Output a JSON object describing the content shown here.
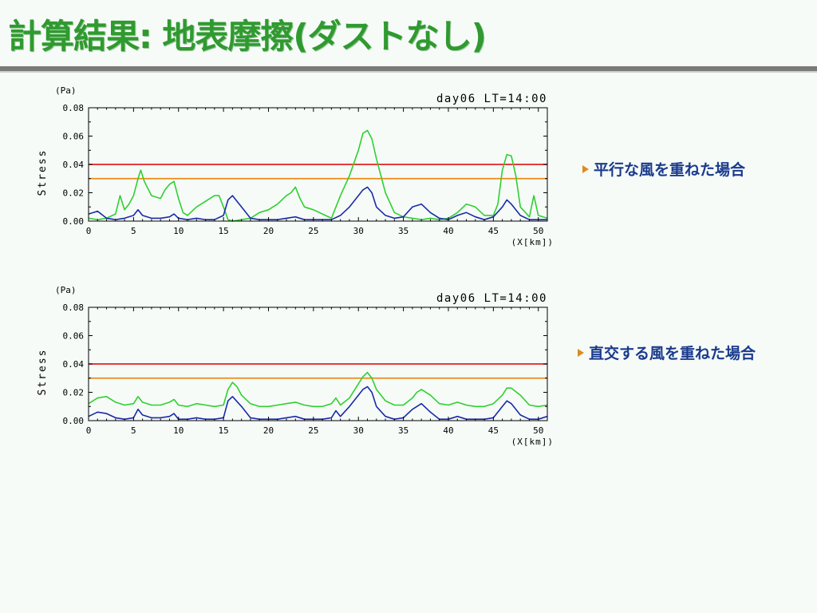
{
  "slide": {
    "title": "計算結果: 地表摩擦(ダストなし)"
  },
  "notes": [
    {
      "text": "平行な風を重ねた場合"
    },
    {
      "text": "直交する風を重ねた場合"
    }
  ],
  "colors": {
    "threshold_high": "#e02020",
    "threshold_low": "#f08a1a",
    "series_green": "#2fd02f",
    "series_blue": "#1a2aa8",
    "title": "#2f9a2f",
    "note_text": "#1a3a8c",
    "bullet": "#e08a1e"
  },
  "chart_data": [
    {
      "type": "line",
      "title": "day06 LT=14:00",
      "ylabel": "Stress",
      "yunit": "(Pa)",
      "xlabel": "(X[km])",
      "xlim": [
        0,
        51
      ],
      "ylim": [
        0,
        0.08
      ],
      "xticks": [
        "0",
        "5",
        "10",
        "15",
        "20",
        "25",
        "30",
        "35",
        "40",
        "45",
        "50"
      ],
      "yticks": [
        "0.00",
        "0.02",
        "0.04",
        "0.06",
        "0.08"
      ],
      "hlines": [
        {
          "y": 0.04,
          "color": "#e02020"
        },
        {
          "y": 0.03,
          "color": "#f08a1a"
        }
      ],
      "series": [
        {
          "color": "#2fd02f",
          "x": [
            0,
            1,
            2,
            3,
            3.5,
            4,
            4.5,
            5,
            5.5,
            5.8,
            6.2,
            7,
            8,
            8.5,
            9,
            9.5,
            10,
            10.5,
            11,
            12,
            13,
            14,
            14.5,
            15,
            15.5,
            16,
            17,
            18,
            19,
            20,
            21,
            22,
            22.5,
            23,
            23.5,
            24,
            25,
            26,
            27,
            28,
            29,
            30,
            30.5,
            31,
            31.5,
            32,
            33,
            34,
            35,
            36,
            37,
            38,
            39,
            40,
            41,
            42,
            43,
            44,
            45,
            45.5,
            46,
            46.5,
            47,
            47.5,
            48,
            49,
            49.5,
            50,
            51
          ],
          "y": [
            0.002,
            0.001,
            0.002,
            0.005,
            0.018,
            0.008,
            0.012,
            0.018,
            0.03,
            0.036,
            0.028,
            0.018,
            0.016,
            0.022,
            0.026,
            0.028,
            0.016,
            0.006,
            0.004,
            0.01,
            0.014,
            0.018,
            0.018,
            0.01,
            0.001,
            0.0,
            0.001,
            0.002,
            0.006,
            0.008,
            0.012,
            0.018,
            0.02,
            0.024,
            0.016,
            0.01,
            0.008,
            0.005,
            0.002,
            0.018,
            0.032,
            0.05,
            0.062,
            0.064,
            0.058,
            0.044,
            0.02,
            0.006,
            0.003,
            0.002,
            0.001,
            0.002,
            0.001,
            0.002,
            0.006,
            0.012,
            0.01,
            0.004,
            0.004,
            0.012,
            0.036,
            0.047,
            0.046,
            0.032,
            0.01,
            0.003,
            0.018,
            0.004,
            0.002
          ]
        },
        {
          "color": "#1a2aa8",
          "x": [
            0,
            1,
            2,
            3,
            4,
            5,
            5.5,
            6,
            7,
            8,
            9,
            9.5,
            10,
            11,
            12,
            13,
            14,
            15,
            15.5,
            16,
            17,
            18,
            19,
            20,
            21,
            22,
            23,
            24,
            25,
            26,
            27,
            28,
            29,
            30,
            30.5,
            31,
            31.5,
            32,
            33,
            34,
            35,
            36,
            37,
            38,
            39,
            40,
            41,
            42,
            43,
            44,
            45,
            46,
            46.5,
            47,
            48,
            49,
            50,
            51
          ],
          "y": [
            0.005,
            0.007,
            0.002,
            0.001,
            0.002,
            0.004,
            0.008,
            0.004,
            0.002,
            0.002,
            0.003,
            0.005,
            0.002,
            0.001,
            0.002,
            0.001,
            0.001,
            0.004,
            0.015,
            0.018,
            0.01,
            0.002,
            0.001,
            0.001,
            0.001,
            0.002,
            0.003,
            0.001,
            0.001,
            0.001,
            0.001,
            0.004,
            0.01,
            0.018,
            0.022,
            0.024,
            0.02,
            0.01,
            0.004,
            0.002,
            0.003,
            0.01,
            0.012,
            0.006,
            0.002,
            0.001,
            0.004,
            0.006,
            0.003,
            0.001,
            0.003,
            0.01,
            0.015,
            0.012,
            0.004,
            0.001,
            0.001,
            0.001
          ]
        }
      ]
    },
    {
      "type": "line",
      "title": "day06 LT=14:00",
      "ylabel": "Stress",
      "yunit": "(Pa)",
      "xlabel": "(X[km])",
      "xlim": [
        0,
        51
      ],
      "ylim": [
        0,
        0.08
      ],
      "xticks": [
        "0",
        "5",
        "10",
        "15",
        "20",
        "25",
        "30",
        "35",
        "40",
        "45",
        "50"
      ],
      "yticks": [
        "0.00",
        "0.02",
        "0.04",
        "0.06",
        "0.08"
      ],
      "hlines": [
        {
          "y": 0.04,
          "color": "#e02020"
        },
        {
          "y": 0.03,
          "color": "#f08a1a"
        }
      ],
      "series": [
        {
          "color": "#2fd02f",
          "x": [
            0,
            1,
            2,
            3,
            4,
            5,
            5.5,
            6,
            7,
            8,
            9,
            9.5,
            10,
            11,
            12,
            13,
            14,
            15,
            15.5,
            16,
            16.5,
            17,
            18,
            19,
            20,
            21,
            22,
            23,
            24,
            25,
            26,
            27,
            27.5,
            28,
            29,
            30,
            30.5,
            31,
            31.5,
            32,
            33,
            34,
            35,
            36,
            36.5,
            37,
            38,
            39,
            40,
            41,
            42,
            43,
            44,
            45,
            46,
            46.5,
            47,
            48,
            49,
            50,
            51
          ],
          "y": [
            0.012,
            0.016,
            0.017,
            0.013,
            0.011,
            0.012,
            0.017,
            0.013,
            0.011,
            0.011,
            0.013,
            0.015,
            0.011,
            0.01,
            0.012,
            0.011,
            0.01,
            0.011,
            0.022,
            0.027,
            0.024,
            0.018,
            0.012,
            0.01,
            0.01,
            0.011,
            0.012,
            0.013,
            0.011,
            0.01,
            0.01,
            0.012,
            0.016,
            0.011,
            0.016,
            0.026,
            0.031,
            0.034,
            0.03,
            0.022,
            0.014,
            0.011,
            0.011,
            0.016,
            0.02,
            0.022,
            0.018,
            0.012,
            0.011,
            0.013,
            0.011,
            0.01,
            0.01,
            0.012,
            0.018,
            0.023,
            0.023,
            0.018,
            0.011,
            0.01,
            0.011
          ]
        },
        {
          "color": "#1a2aa8",
          "x": [
            0,
            1,
            2,
            3,
            4,
            5,
            5.5,
            6,
            7,
            8,
            9,
            9.5,
            10,
            11,
            12,
            13,
            14,
            15,
            15.5,
            16,
            17,
            18,
            19,
            20,
            21,
            22,
            23,
            24,
            25,
            26,
            27,
            27.5,
            28,
            29,
            30,
            30.5,
            31,
            31.5,
            32,
            33,
            34,
            35,
            36,
            37,
            38,
            39,
            40,
            41,
            42,
            43,
            44,
            45,
            46,
            46.5,
            47,
            48,
            49,
            50,
            51
          ],
          "y": [
            0.003,
            0.006,
            0.005,
            0.002,
            0.001,
            0.002,
            0.008,
            0.004,
            0.002,
            0.002,
            0.003,
            0.005,
            0.001,
            0.001,
            0.002,
            0.001,
            0.001,
            0.002,
            0.014,
            0.017,
            0.01,
            0.002,
            0.001,
            0.001,
            0.001,
            0.002,
            0.003,
            0.001,
            0.001,
            0.001,
            0.002,
            0.007,
            0.003,
            0.01,
            0.018,
            0.022,
            0.024,
            0.02,
            0.01,
            0.003,
            0.001,
            0.002,
            0.008,
            0.012,
            0.006,
            0.001,
            0.001,
            0.003,
            0.001,
            0.001,
            0.001,
            0.002,
            0.01,
            0.014,
            0.012,
            0.004,
            0.001,
            0.001,
            0.003
          ]
        }
      ]
    }
  ]
}
